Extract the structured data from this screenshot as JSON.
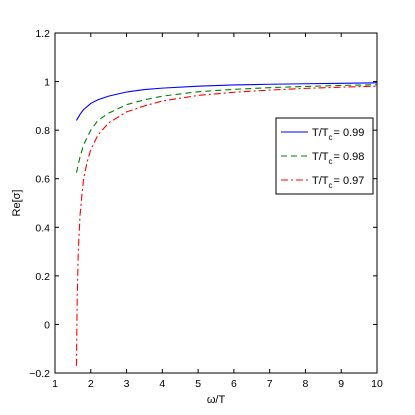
{
  "chart_data": {
    "type": "line",
    "xlabel": "ω/T",
    "ylabel": "Re[σ]",
    "xlim": [
      1,
      10
    ],
    "ylim": [
      -0.2,
      1.2
    ],
    "xticks": [
      1,
      2,
      3,
      4,
      5,
      6,
      7,
      8,
      9,
      10
    ],
    "yticks": [
      -0.2,
      0,
      0.2,
      0.4,
      0.6,
      0.8,
      1,
      1.2
    ],
    "xtick_labels": [
      "1",
      "2",
      "3",
      "4",
      "5",
      "6",
      "7",
      "8",
      "9",
      "10"
    ],
    "ytick_labels": [
      "−0.2",
      "0",
      "0.2",
      "0.4",
      "0.6",
      "0.8",
      "1",
      "1.2"
    ],
    "grid": false,
    "legend_position": "right",
    "series": [
      {
        "name": "T/T_c = 0.99",
        "legend_main": "T/T",
        "legend_sub": "c",
        "legend_tail": "= 0.99",
        "color": "#0000ff",
        "dash": "solid",
        "x": [
          1.6,
          1.7,
          1.8,
          2.0,
          2.2,
          2.5,
          3.0,
          3.5,
          4.0,
          5.0,
          6.0,
          7.0,
          8.0,
          9.0,
          10.0
        ],
        "y": [
          0.84,
          0.865,
          0.885,
          0.91,
          0.925,
          0.94,
          0.957,
          0.967,
          0.973,
          0.981,
          0.986,
          0.989,
          0.991,
          0.993,
          0.995
        ]
      },
      {
        "name": "T/T_c = 0.98",
        "legend_main": "T/T",
        "legend_sub": "c",
        "legend_tail": "= 0.98",
        "color": "#008000",
        "dash": "dashed",
        "x": [
          1.6,
          1.7,
          1.8,
          2.0,
          2.2,
          2.5,
          3.0,
          3.5,
          4.0,
          5.0,
          6.0,
          7.0,
          8.0,
          9.0,
          10.0
        ],
        "y": [
          0.625,
          0.69,
          0.74,
          0.8,
          0.84,
          0.87,
          0.905,
          0.925,
          0.94,
          0.958,
          0.968,
          0.975,
          0.98,
          0.984,
          0.987
        ]
      },
      {
        "name": "T/T_c = 0.97",
        "legend_main": "T/T",
        "legend_sub": "c",
        "legend_tail": "= 0.97",
        "color": "#ff0000",
        "dash": "dashdot",
        "x": [
          1.6,
          1.62,
          1.65,
          1.7,
          1.75,
          1.8,
          1.9,
          2.0,
          2.2,
          2.5,
          3.0,
          3.5,
          4.0,
          5.0,
          6.0,
          7.0,
          8.0,
          9.0,
          10.0
        ],
        "y": [
          -0.17,
          0.1,
          0.3,
          0.45,
          0.53,
          0.6,
          0.67,
          0.72,
          0.78,
          0.83,
          0.875,
          0.9,
          0.92,
          0.943,
          0.956,
          0.965,
          0.972,
          0.977,
          0.981
        ]
      }
    ]
  }
}
